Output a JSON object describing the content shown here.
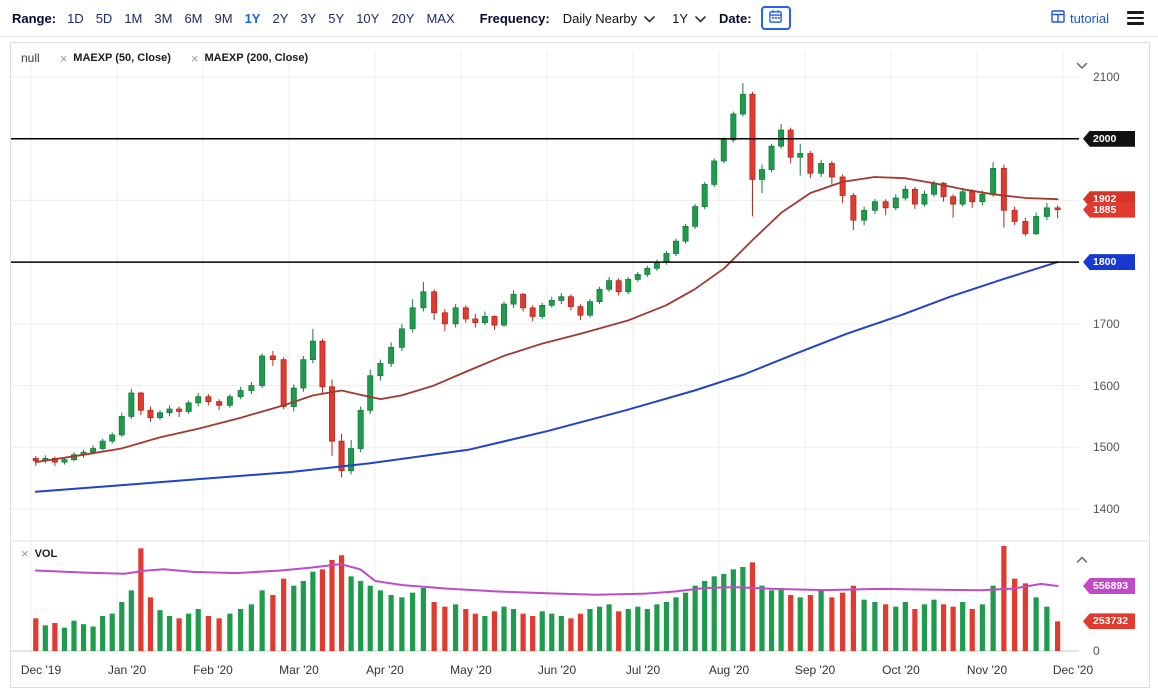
{
  "toolbar": {
    "range_label": "Range:",
    "ranges": [
      "1D",
      "5D",
      "1M",
      "3M",
      "6M",
      "9M",
      "1Y",
      "2Y",
      "3Y",
      "5Y",
      "10Y",
      "20Y",
      "MAX"
    ],
    "active_range": "1Y",
    "frequency_label": "Frequency:",
    "frequency_value": "Daily Nearby",
    "period_value": "1Y",
    "date_label": "Date:",
    "tutorial_label": "tutorial",
    "icons": [
      "calendar-icon",
      "chevron-down-icon",
      "tutorial-icon",
      "hamburger-menu-icon"
    ]
  },
  "main_panel": {
    "chips": [
      {
        "label": "null",
        "removable": false
      },
      {
        "label": "MAEXP (50, Close)",
        "removable": true
      },
      {
        "label": "MAEXP (200, Close)",
        "removable": true
      }
    ],
    "badges": [
      {
        "label": "2000",
        "price": 2000,
        "color": "#111111"
      },
      {
        "label": "1902",
        "price": 1902,
        "color": "#d63429"
      },
      {
        "label": "1885",
        "price": 1885,
        "color": "#e13a2e"
      },
      {
        "label": "1800",
        "price": 1800,
        "color": "#1738d1"
      }
    ]
  },
  "volume_panel": {
    "chip": {
      "label": "VOL",
      "removable": true
    },
    "badges": [
      {
        "label": "556893",
        "value": 556893,
        "color": "#c04ac8"
      },
      {
        "label": "253732",
        "value": 253732,
        "color": "#e13a2e"
      }
    ],
    "zero_label": "0"
  },
  "colors": {
    "up": "#1f9b4d",
    "up_dark": "#157a3a",
    "down": "#e13a2e",
    "down_dark": "#b3271e",
    "hline": "#000000",
    "grid": "#ededed",
    "active_range": "#1464e8",
    "accent_blue": "#2563eb"
  },
  "chart_data": {
    "type": "candlestick",
    "x_labels": [
      "Dec '19",
      "Jan '20",
      "Feb '20",
      "Mar '20",
      "Apr '20",
      "May '20",
      "Jun '20",
      "Jul '20",
      "Aug '20",
      "Sep '20",
      "Oct '20",
      "Nov '20",
      "Dec '20"
    ],
    "ylim": [
      1400,
      2100
    ],
    "y_ticks": [
      2100,
      1700,
      1600,
      1500,
      1400
    ],
    "hlines": [
      2000,
      1800
    ],
    "month_candle_counts": [
      9,
      9,
      8,
      9,
      8,
      9,
      9,
      9,
      9,
      8,
      9,
      8
    ],
    "ohlc": [
      [
        1482,
        1486,
        1470,
        1478
      ],
      [
        1478,
        1487,
        1474,
        1482
      ],
      [
        1482,
        1485,
        1470,
        1476
      ],
      [
        1476,
        1484,
        1472,
        1480
      ],
      [
        1480,
        1492,
        1477,
        1488
      ],
      [
        1488,
        1496,
        1483,
        1492
      ],
      [
        1492,
        1503,
        1488,
        1498
      ],
      [
        1498,
        1514,
        1495,
        1510
      ],
      [
        1510,
        1524,
        1506,
        1520
      ],
      [
        1520,
        1556,
        1517,
        1550
      ],
      [
        1550,
        1595,
        1546,
        1588
      ],
      [
        1588,
        1590,
        1552,
        1560
      ],
      [
        1560,
        1566,
        1541,
        1548
      ],
      [
        1548,
        1560,
        1544,
        1556
      ],
      [
        1556,
        1568,
        1550,
        1562
      ],
      [
        1562,
        1566,
        1549,
        1558
      ],
      [
        1558,
        1576,
        1554,
        1572
      ],
      [
        1572,
        1588,
        1566,
        1582
      ],
      [
        1582,
        1586,
        1568,
        1574
      ],
      [
        1574,
        1578,
        1560,
        1568
      ],
      [
        1568,
        1586,
        1564,
        1582
      ],
      [
        1582,
        1598,
        1578,
        1592
      ],
      [
        1592,
        1606,
        1586,
        1600
      ],
      [
        1600,
        1652,
        1596,
        1648
      ],
      [
        1648,
        1656,
        1632,
        1642
      ],
      [
        1642,
        1646,
        1562,
        1566
      ],
      [
        1566,
        1602,
        1558,
        1596
      ],
      [
        1596,
        1648,
        1590,
        1642
      ],
      [
        1642,
        1692,
        1636,
        1672
      ],
      [
        1672,
        1676,
        1588,
        1598
      ],
      [
        1598,
        1610,
        1486,
        1510
      ],
      [
        1510,
        1522,
        1451,
        1462
      ],
      [
        1462,
        1512,
        1456,
        1498
      ],
      [
        1498,
        1566,
        1492,
        1560
      ],
      [
        1560,
        1626,
        1554,
        1616
      ],
      [
        1616,
        1642,
        1608,
        1636
      ],
      [
        1636,
        1670,
        1630,
        1662
      ],
      [
        1662,
        1700,
        1656,
        1692
      ],
      [
        1692,
        1740,
        1686,
        1726
      ],
      [
        1726,
        1768,
        1720,
        1752
      ],
      [
        1752,
        1756,
        1706,
        1718
      ],
      [
        1718,
        1724,
        1688,
        1700
      ],
      [
        1700,
        1732,
        1694,
        1726
      ],
      [
        1726,
        1730,
        1702,
        1708
      ],
      [
        1708,
        1716,
        1694,
        1702
      ],
      [
        1702,
        1720,
        1698,
        1712
      ],
      [
        1712,
        1714,
        1690,
        1698
      ],
      [
        1698,
        1736,
        1695,
        1732
      ],
      [
        1732,
        1754,
        1726,
        1748
      ],
      [
        1748,
        1750,
        1720,
        1726
      ],
      [
        1726,
        1730,
        1704,
        1712
      ],
      [
        1712,
        1734,
        1708,
        1730
      ],
      [
        1730,
        1744,
        1726,
        1738
      ],
      [
        1738,
        1750,
        1732,
        1744
      ],
      [
        1744,
        1748,
        1722,
        1728
      ],
      [
        1728,
        1732,
        1706,
        1714
      ],
      [
        1714,
        1740,
        1710,
        1736
      ],
      [
        1736,
        1760,
        1732,
        1756
      ],
      [
        1756,
        1776,
        1752,
        1770
      ],
      [
        1770,
        1774,
        1746,
        1752
      ],
      [
        1752,
        1776,
        1748,
        1772
      ],
      [
        1772,
        1784,
        1768,
        1780
      ],
      [
        1780,
        1794,
        1776,
        1790
      ],
      [
        1790,
        1804,
        1786,
        1800
      ],
      [
        1800,
        1818,
        1796,
        1814
      ],
      [
        1814,
        1838,
        1810,
        1834
      ],
      [
        1834,
        1862,
        1830,
        1858
      ],
      [
        1858,
        1894,
        1854,
        1890
      ],
      [
        1890,
        1930,
        1886,
        1926
      ],
      [
        1926,
        1968,
        1922,
        1964
      ],
      [
        1964,
        2002,
        1960,
        1998
      ],
      [
        1998,
        2044,
        1994,
        2040
      ],
      [
        2040,
        2090,
        2036,
        2072
      ],
      [
        2072,
        2076,
        1874,
        1934
      ],
      [
        1934,
        1958,
        1912,
        1950
      ],
      [
        1950,
        1992,
        1946,
        1988
      ],
      [
        1988,
        2024,
        1984,
        2014
      ],
      [
        2014,
        2018,
        1960,
        1970
      ],
      [
        1970,
        1992,
        1940,
        1976
      ],
      [
        1976,
        1980,
        1936,
        1944
      ],
      [
        1944,
        1966,
        1938,
        1960
      ],
      [
        1960,
        1964,
        1926,
        1938
      ],
      [
        1938,
        1942,
        1896,
        1908
      ],
      [
        1908,
        1912,
        1852,
        1868
      ],
      [
        1868,
        1890,
        1860,
        1884
      ],
      [
        1884,
        1902,
        1878,
        1898
      ],
      [
        1898,
        1902,
        1876,
        1888
      ],
      [
        1888,
        1910,
        1884,
        1904
      ],
      [
        1904,
        1924,
        1900,
        1918
      ],
      [
        1918,
        1922,
        1886,
        1894
      ],
      [
        1894,
        1916,
        1890,
        1910
      ],
      [
        1910,
        1932,
        1906,
        1928
      ],
      [
        1928,
        1930,
        1898,
        1906
      ],
      [
        1906,
        1910,
        1872,
        1894
      ],
      [
        1894,
        1920,
        1890,
        1914
      ],
      [
        1914,
        1918,
        1888,
        1898
      ],
      [
        1898,
        1916,
        1892,
        1910
      ],
      [
        1910,
        1962,
        1906,
        1952
      ],
      [
        1952,
        1958,
        1856,
        1884
      ],
      [
        1884,
        1890,
        1860,
        1866
      ],
      [
        1866,
        1872,
        1842,
        1846
      ],
      [
        1846,
        1880,
        1844,
        1874
      ],
      [
        1874,
        1896,
        1868,
        1888
      ],
      [
        1888,
        1892,
        1871,
        1885
      ]
    ],
    "volumes": [
      280000,
      220000,
      240000,
      200000,
      260000,
      230000,
      210000,
      300000,
      320000,
      420000,
      520000,
      880000,
      460000,
      350000,
      300000,
      280000,
      320000,
      360000,
      300000,
      280000,
      320000,
      360000,
      400000,
      520000,
      480000,
      620000,
      560000,
      600000,
      680000,
      700000,
      780000,
      820000,
      640000,
      600000,
      560000,
      520000,
      480000,
      460000,
      500000,
      540000,
      420000,
      380000,
      400000,
      360000,
      320000,
      300000,
      340000,
      380000,
      360000,
      320000,
      300000,
      340000,
      320000,
      300000,
      280000,
      320000,
      360000,
      380000,
      400000,
      340000,
      360000,
      380000,
      360000,
      400000,
      420000,
      460000,
      500000,
      560000,
      600000,
      640000,
      660000,
      700000,
      720000,
      760000,
      560000,
      520000,
      540000,
      480000,
      460000,
      480000,
      520000,
      460000,
      500000,
      560000,
      440000,
      420000,
      400000,
      380000,
      420000,
      360000,
      400000,
      440000,
      400000,
      380000,
      420000,
      360000,
      400000,
      560000,
      900000,
      620000,
      580000,
      460000,
      380000,
      253732
    ],
    "volume_ylim": [
      0,
      900000
    ],
    "overlays": {
      "ma50": {
        "name": "MAEXP (50, Close)",
        "color": "#a03a2e",
        "anchors": [
          [
            0,
            1476
          ],
          [
            0.049,
            1488
          ],
          [
            0.087,
            1498
          ],
          [
            0.126,
            1516
          ],
          [
            0.165,
            1530
          ],
          [
            0.204,
            1548
          ],
          [
            0.243,
            1568
          ],
          [
            0.272,
            1584
          ],
          [
            0.301,
            1592
          ],
          [
            0.32,
            1585
          ],
          [
            0.34,
            1578
          ],
          [
            0.359,
            1584
          ],
          [
            0.388,
            1600
          ],
          [
            0.417,
            1622
          ],
          [
            0.456,
            1648
          ],
          [
            0.495,
            1668
          ],
          [
            0.534,
            1684
          ],
          [
            0.583,
            1706
          ],
          [
            0.621,
            1730
          ],
          [
            0.65,
            1756
          ],
          [
            0.68,
            1790
          ],
          [
            0.709,
            1836
          ],
          [
            0.738,
            1880
          ],
          [
            0.767,
            1912
          ],
          [
            0.796,
            1930
          ],
          [
            0.825,
            1938
          ],
          [
            0.854,
            1936
          ],
          [
            0.883,
            1928
          ],
          [
            0.913,
            1918
          ],
          [
            0.942,
            1910
          ],
          [
            0.971,
            1904
          ],
          [
            1,
            1902
          ]
        ]
      },
      "ma200": {
        "name": "MAEXP (200, Close)",
        "color": "#2243c8",
        "anchors": [
          [
            0,
            1428
          ],
          [
            0.083,
            1438
          ],
          [
            0.17,
            1449
          ],
          [
            0.25,
            1460
          ],
          [
            0.33,
            1474
          ],
          [
            0.42,
            1496
          ],
          [
            0.5,
            1526
          ],
          [
            0.58,
            1560
          ],
          [
            0.65,
            1592
          ],
          [
            0.7,
            1618
          ],
          [
            0.75,
            1650
          ],
          [
            0.8,
            1684
          ],
          [
            0.85,
            1714
          ],
          [
            0.9,
            1744
          ],
          [
            0.95,
            1772
          ],
          [
            1,
            1800
          ]
        ]
      },
      "vol_ma": {
        "name": "Volume MA",
        "color": "#c04ac8",
        "anchors": [
          [
            0,
            690000
          ],
          [
            0.05,
            672000
          ],
          [
            0.09,
            662000
          ],
          [
            0.11,
            688000
          ],
          [
            0.13,
            700000
          ],
          [
            0.16,
            678000
          ],
          [
            0.2,
            668000
          ],
          [
            0.24,
            690000
          ],
          [
            0.27,
            715000
          ],
          [
            0.3,
            745000
          ],
          [
            0.32,
            700000
          ],
          [
            0.335,
            600000
          ],
          [
            0.36,
            565000
          ],
          [
            0.4,
            535000
          ],
          [
            0.45,
            510000
          ],
          [
            0.5,
            495000
          ],
          [
            0.55,
            482000
          ],
          [
            0.6,
            492000
          ],
          [
            0.63,
            510000
          ],
          [
            0.66,
            540000
          ],
          [
            0.69,
            548000
          ],
          [
            0.73,
            532000
          ],
          [
            0.78,
            522000
          ],
          [
            0.83,
            532000
          ],
          [
            0.88,
            526000
          ],
          [
            0.93,
            520000
          ],
          [
            0.96,
            535000
          ],
          [
            0.985,
            575000
          ],
          [
            1,
            556893
          ]
        ]
      }
    },
    "last_price": 1885,
    "ma50_value": 1902,
    "ma200_value": 1800,
    "vol_ma_value": 556893,
    "last_volume": 253732
  }
}
